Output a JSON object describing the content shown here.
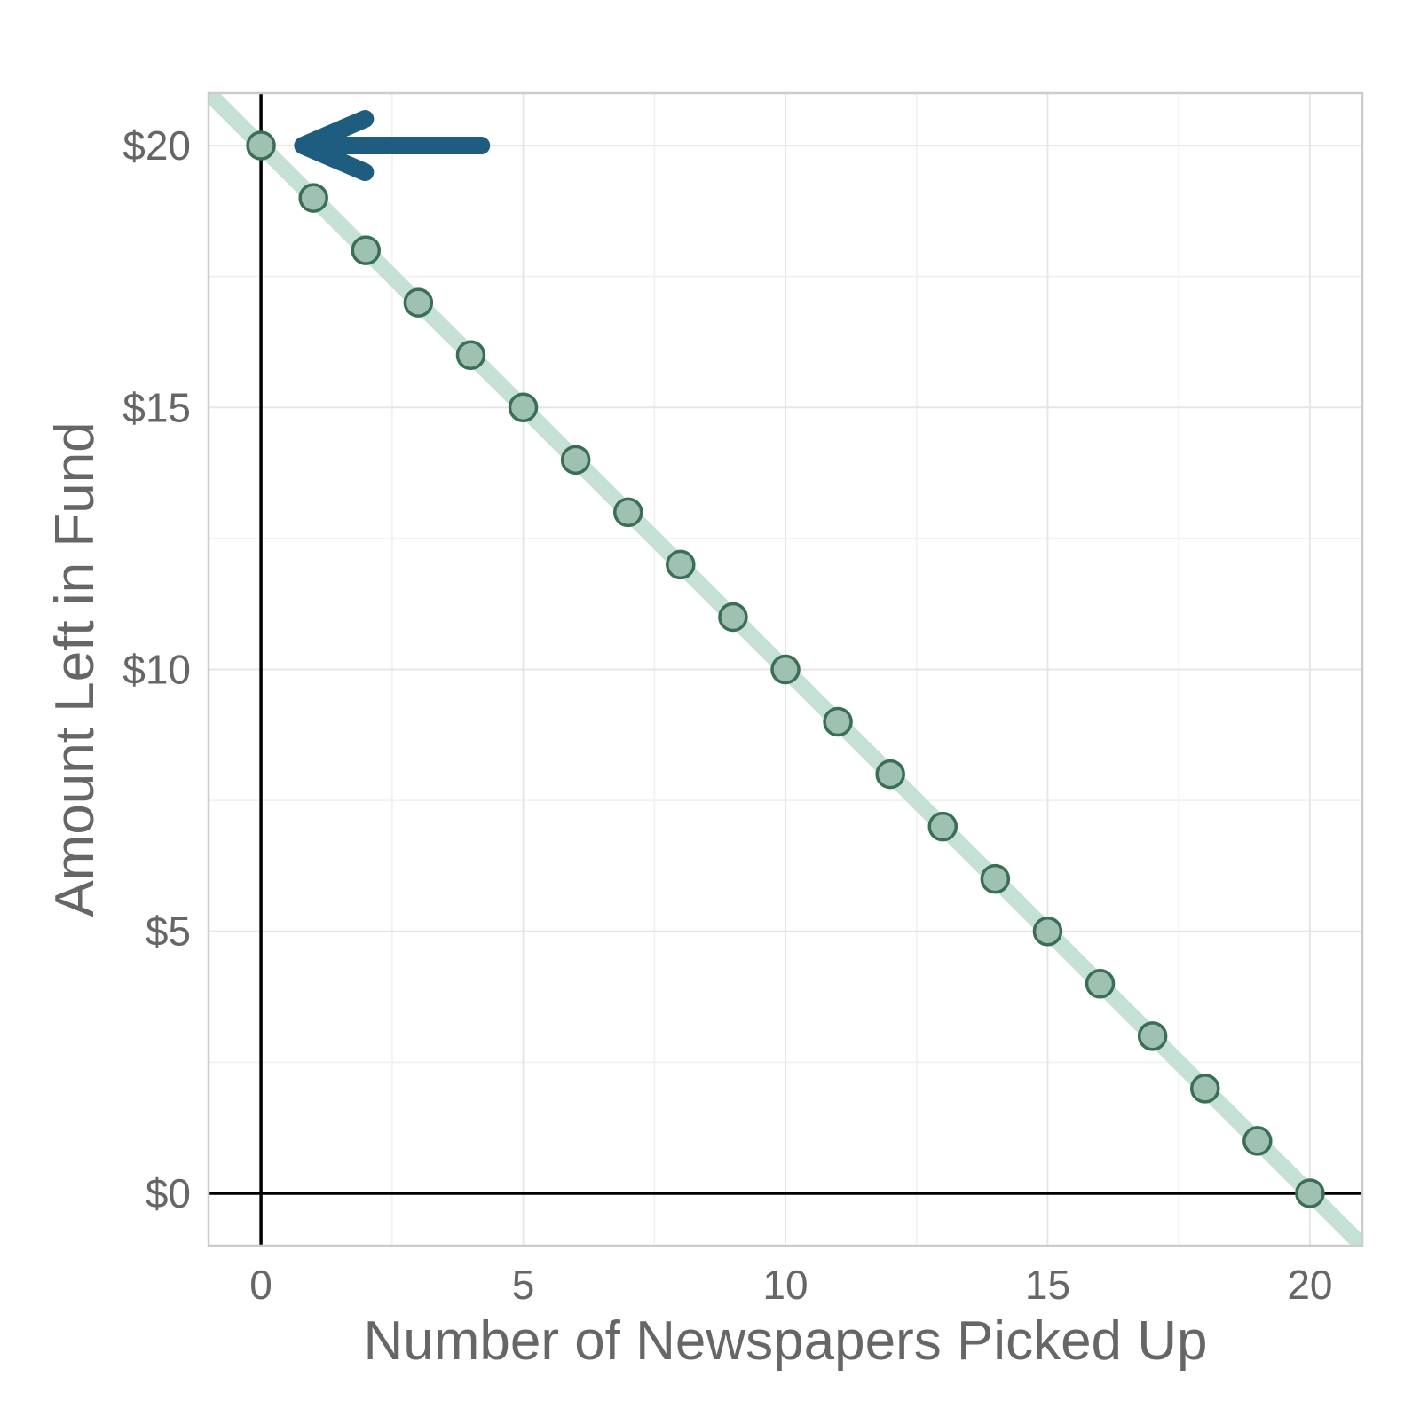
{
  "colors": {
    "line": "#c5e1d6",
    "point_fill": "#9fc1b2",
    "point_stroke": "#3b6e56",
    "arrow": "#1f5d80",
    "grid_major": "#e6e6e6",
    "grid_minor": "#f2f2f2",
    "panel_border": "#cccccc",
    "zero_axes": "#000000",
    "text": "#666666"
  },
  "chart_data": {
    "type": "scatter",
    "title": "",
    "xlabel": "Number of Newspapers Picked Up",
    "ylabel": "Amount Left in Fund",
    "xlim": [
      -1,
      21
    ],
    "ylim": [
      -1,
      21
    ],
    "x_ticks": [
      0,
      5,
      10,
      15,
      20
    ],
    "x_tick_labels": [
      "0",
      "5",
      "10",
      "15",
      "20"
    ],
    "y_ticks": [
      0,
      5,
      10,
      15,
      20
    ],
    "y_tick_labels": [
      "$0",
      "$5",
      "$10",
      "$15",
      "$20"
    ],
    "grid": true,
    "zero_axes": true,
    "trend_line": {
      "slope": -1,
      "intercept": 20
    },
    "series": [
      {
        "x": [
          0,
          1,
          2,
          3,
          4,
          5,
          6,
          7,
          8,
          9,
          10,
          11,
          12,
          13,
          14,
          15,
          16,
          17,
          18,
          19,
          20
        ],
        "y": [
          20,
          19,
          18,
          17,
          16,
          15,
          14,
          13,
          12,
          11,
          10,
          9,
          8,
          7,
          6,
          5,
          4,
          3,
          2,
          1,
          0
        ]
      }
    ],
    "annotations": [
      {
        "type": "arrow",
        "from": [
          4.2,
          20
        ],
        "to": [
          0.8,
          20
        ]
      }
    ]
  }
}
